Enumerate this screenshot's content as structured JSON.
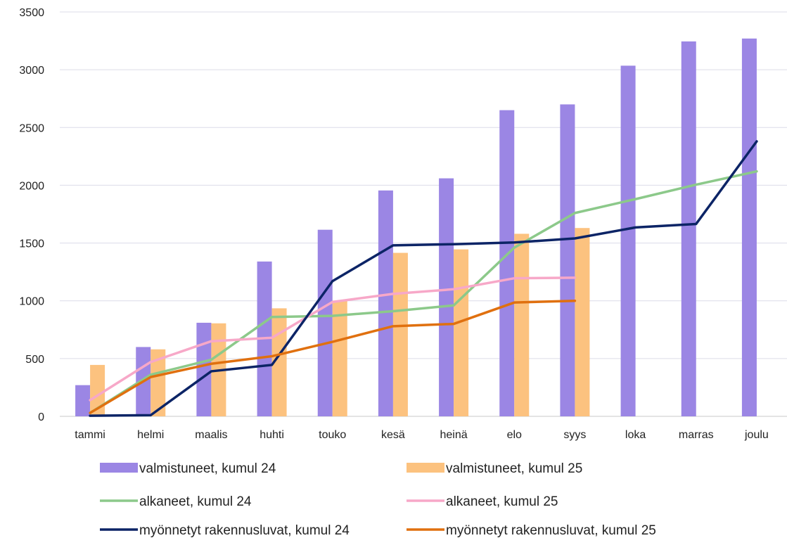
{
  "chart_data": {
    "type": "bar",
    "categories": [
      "tammi",
      "helmi",
      "maalis",
      "huhti",
      "touko",
      "kesä",
      "heinä",
      "elo",
      "syys",
      "loka",
      "marras",
      "joulu"
    ],
    "ylim": [
      0,
      3500
    ],
    "yticks": [
      0,
      500,
      1000,
      1500,
      2000,
      2500,
      3000,
      3500
    ],
    "grid": true,
    "legend_position": "bottom",
    "title": "",
    "xlabel": "",
    "ylabel": "",
    "bar_series": [
      {
        "name": "valmistuneet, kumul 24",
        "color": "#9b86e4",
        "values": [
          270,
          600,
          810,
          1340,
          1615,
          1955,
          2060,
          2650,
          2700,
          3035,
          3245,
          3270
        ]
      },
      {
        "name": "valmistuneet, kumul 25",
        "color": "#fcc27f",
        "values": [
          445,
          580,
          805,
          935,
          1000,
          1415,
          1445,
          1580,
          1630,
          null,
          null,
          null
        ]
      }
    ],
    "line_series": [
      {
        "name": "alkaneet, kumul 24",
        "color": "#8cc98a",
        "values": [
          30,
          360,
          490,
          860,
          870,
          910,
          960,
          1460,
          1760,
          1880,
          2005,
          2120
        ]
      },
      {
        "name": "alkaneet, kumul 25",
        "color": "#f7a8c8",
        "values": [
          140,
          470,
          650,
          680,
          990,
          1060,
          1100,
          1195,
          1200,
          null,
          null,
          null
        ]
      },
      {
        "name": "myönnetyt rakennusluvat, kumul 24",
        "color": "#0c2466",
        "values": [
          5,
          10,
          390,
          445,
          1170,
          1480,
          1490,
          1505,
          1540,
          1635,
          1665,
          2380
        ]
      },
      {
        "name": "myönnetyt rakennusluvat, kumul 25",
        "color": "#e0700f",
        "values": [
          30,
          340,
          455,
          520,
          645,
          780,
          800,
          985,
          1000,
          null,
          null,
          null
        ]
      }
    ]
  }
}
